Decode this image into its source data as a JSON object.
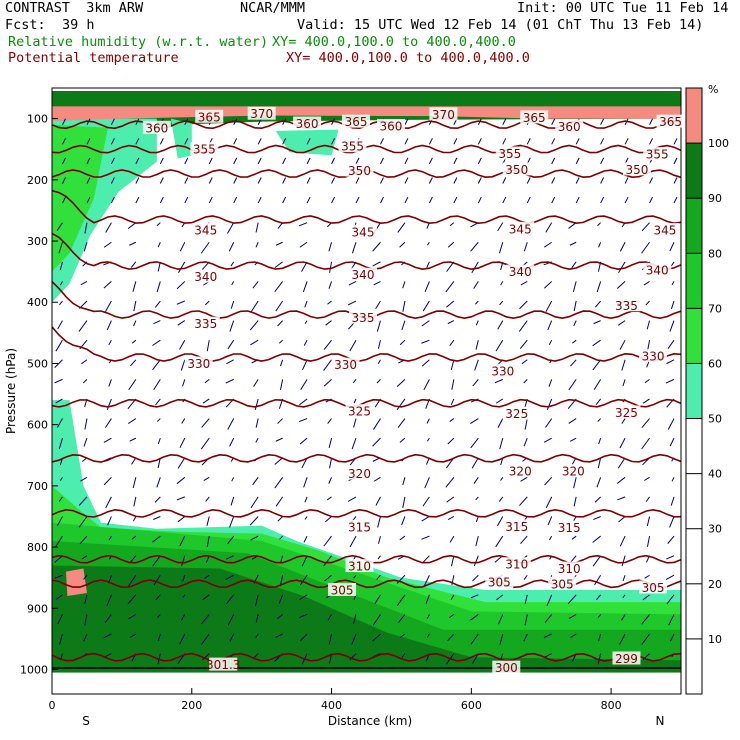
{
  "header": {
    "model": "CONTRAST  3km ARW",
    "org": "NCAR/MMM",
    "init": "Init: 00 UTC Tue 11 Feb 14",
    "fcst_label": "Fcst:",
    "fcst_value": "39 h",
    "valid": "Valid: 15 UTC Wed 12 Feb 14 (01 ChT Thu 13 Feb 14)",
    "field1": "Relative humidity (w.r.t. water)",
    "field1_xy": "XY= 400.0,100.0 to 400.0,400.0",
    "field2": "Potential temperature",
    "field2_xy": "XY= 400.0,100.0 to 400.0,400.0"
  },
  "colors": {
    "rh_50": "#4cedad",
    "rh_60": "#31e03a",
    "rh_70": "#1ec82a",
    "rh_80": "#14a81e",
    "rh_90": "#0c7a16",
    "rh_100": "#f58a80",
    "theta_line": "#7a0000",
    "wind": "#00006e"
  },
  "chart_data": {
    "type": "contour-cross-section",
    "xlabel": "Distance (km)",
    "ylabel": "Pressure (hPa)",
    "xlim": [
      0,
      900
    ],
    "ylim_hpa": [
      1040,
      50
    ],
    "x_ticks": [
      0,
      200,
      400,
      600,
      800
    ],
    "y_ticks": [
      100,
      200,
      300,
      400,
      500,
      600,
      700,
      800,
      900,
      1000
    ],
    "end_labels": {
      "left": "S",
      "right": "N"
    },
    "colorbar": {
      "unit": "%",
      "ticks": [
        10,
        20,
        30,
        40,
        50,
        60,
        70,
        80,
        90,
        100
      ]
    },
    "theta_labels": [
      {
        "text": "360",
        "x": 150,
        "p": 115
      },
      {
        "text": "365",
        "x": 225,
        "p": 97
      },
      {
        "text": "370",
        "x": 300,
        "p": 92
      },
      {
        "text": "360",
        "x": 365,
        "p": 108
      },
      {
        "text": "365",
        "x": 435,
        "p": 105
      },
      {
        "text": "360",
        "x": 485,
        "p": 112
      },
      {
        "text": "370",
        "x": 560,
        "p": 93
      },
      {
        "text": "365",
        "x": 690,
        "p": 98
      },
      {
        "text": "360",
        "x": 740,
        "p": 113
      },
      {
        "text": "365",
        "x": 885,
        "p": 105
      },
      {
        "text": "355",
        "x": 218,
        "p": 150
      },
      {
        "text": "355",
        "x": 430,
        "p": 145
      },
      {
        "text": "355",
        "x": 655,
        "p": 157
      },
      {
        "text": "355",
        "x": 866,
        "p": 158
      },
      {
        "text": "350",
        "x": 440,
        "p": 185
      },
      {
        "text": "350",
        "x": 665,
        "p": 183
      },
      {
        "text": "350",
        "x": 837,
        "p": 183
      },
      {
        "text": "345",
        "x": 220,
        "p": 282
      },
      {
        "text": "345",
        "x": 445,
        "p": 285
      },
      {
        "text": "345",
        "x": 670,
        "p": 280
      },
      {
        "text": "345",
        "x": 877,
        "p": 282
      },
      {
        "text": "340",
        "x": 220,
        "p": 358
      },
      {
        "text": "340",
        "x": 445,
        "p": 355
      },
      {
        "text": "340",
        "x": 670,
        "p": 350
      },
      {
        "text": "340",
        "x": 866,
        "p": 347
      },
      {
        "text": "335",
        "x": 220,
        "p": 435
      },
      {
        "text": "335",
        "x": 445,
        "p": 425
      },
      {
        "text": "335",
        "x": 822,
        "p": 405
      },
      {
        "text": "330",
        "x": 210,
        "p": 500
      },
      {
        "text": "330",
        "x": 420,
        "p": 502
      },
      {
        "text": "330",
        "x": 645,
        "p": 512
      },
      {
        "text": "330",
        "x": 860,
        "p": 488
      },
      {
        "text": "325",
        "x": 440,
        "p": 578
      },
      {
        "text": "325",
        "x": 665,
        "p": 582
      },
      {
        "text": "325",
        "x": 822,
        "p": 580
      },
      {
        "text": "320",
        "x": 440,
        "p": 680
      },
      {
        "text": "320",
        "x": 670,
        "p": 676
      },
      {
        "text": "320",
        "x": 746,
        "p": 676
      },
      {
        "text": "315",
        "x": 440,
        "p": 767
      },
      {
        "text": "315",
        "x": 665,
        "p": 766
      },
      {
        "text": "315",
        "x": 740,
        "p": 768
      },
      {
        "text": "310",
        "x": 440,
        "p": 831
      },
      {
        "text": "310",
        "x": 665,
        "p": 828
      },
      {
        "text": "310",
        "x": 740,
        "p": 835
      },
      {
        "text": "305",
        "x": 415,
        "p": 870
      },
      {
        "text": "305",
        "x": 640,
        "p": 857
      },
      {
        "text": "305",
        "x": 730,
        "p": 860
      },
      {
        "text": "305",
        "x": 860,
        "p": 866
      },
      {
        "text": "301.3",
        "x": 245,
        "p": 992
      },
      {
        "text": "300",
        "x": 650,
        "p": 997
      },
      {
        "text": "299",
        "x": 822,
        "p": 982
      }
    ]
  }
}
